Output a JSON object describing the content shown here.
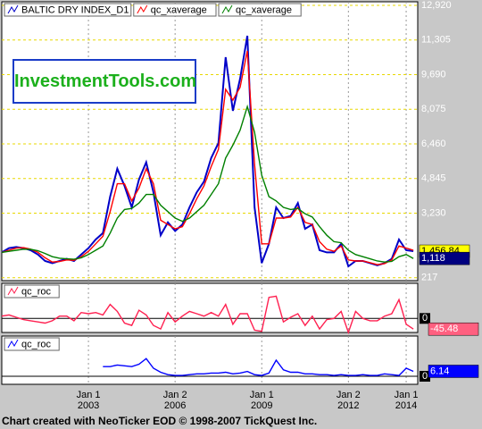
{
  "chart_data": [
    {
      "type": "line",
      "x": [
        2000,
        2000.25,
        2000.5,
        2000.75,
        2001,
        2001.25,
        2001.5,
        2001.75,
        2002,
        2002.25,
        2002.5,
        2002.75,
        2003,
        2003.25,
        2003.5,
        2003.75,
        2004,
        2004.25,
        2004.5,
        2004.75,
        2005,
        2005.25,
        2005.5,
        2005.75,
        2006,
        2006.25,
        2006.5,
        2006.75,
        2007,
        2007.25,
        2007.5,
        2007.75,
        2008,
        2008.25,
        2008.5,
        2008.75,
        2009,
        2009.25,
        2009.5,
        2009.75,
        2010,
        2010.25,
        2010.5,
        2010.75,
        2011,
        2011.25,
        2011.5,
        2011.75,
        2012,
        2012.25,
        2012.5,
        2012.75,
        2013,
        2013.25,
        2013.5,
        2013.75,
        2014,
        2014.25
      ],
      "xlim": [
        2000,
        2014.4
      ],
      "ylim": [
        83,
        13086
      ],
      "yticks": [
        217,
        {
          "value": 3230,
          "label": "3,230"
        },
        {
          "value": 4845,
          "label": "4,845"
        },
        {
          "value": 6460,
          "label": "6,460"
        },
        {
          "value": 8075,
          "label": "8,075"
        },
        {
          "value": 9690,
          "label": "9,690"
        },
        {
          "value": 11305,
          "label": "11,305"
        },
        {
          "value": 12920,
          "label": "12,920"
        }
      ],
      "grid": true,
      "series": [
        {
          "name": "BALTIC DRY INDEX_D1",
          "color": "#0000c8",
          "label_color": "#ffff00",
          "values": [
            1400,
            1600,
            1650,
            1600,
            1500,
            1300,
            1000,
            900,
            1000,
            1100,
            1000,
            1300,
            1600,
            2000,
            2300,
            4000,
            5300,
            4500,
            3500,
            4800,
            5600,
            4200,
            2200,
            2800,
            2400,
            2700,
            3500,
            4200,
            4700,
            5800,
            6500,
            10500,
            8000,
            9500,
            11500,
            3500,
            900,
            1800,
            3500,
            3000,
            3100,
            3700,
            2500,
            2700,
            1500,
            1400,
            1400,
            1800,
            750,
            1000,
            1000,
            900,
            800,
            900,
            1100,
            2000,
            1500,
            1456.84
          ],
          "value_labels": [
            null,
            null,
            null,
            null,
            null,
            null,
            null,
            null,
            null,
            null,
            null,
            null,
            null,
            null,
            null,
            null,
            null,
            null,
            null,
            null,
            null,
            null,
            null,
            null,
            null,
            null,
            null,
            null,
            null,
            null,
            null,
            null,
            null,
            null,
            null,
            null,
            null,
            null,
            null,
            null,
            null,
            null,
            null,
            null,
            null,
            null,
            null,
            null,
            null,
            null,
            null,
            null,
            null,
            null,
            null,
            null,
            null,
            "1,456.84"
          ]
        },
        {
          "name": "qc_xaverage",
          "color": "#ff0000",
          "label_color": "#ff0000",
          "values": [
            1400,
            1500,
            1600,
            1620,
            1550,
            1400,
            1150,
            950,
            980,
            1050,
            1030,
            1200,
            1450,
            1800,
            2150,
            3300,
            4600,
            4600,
            3800,
            4400,
            5300,
            4600,
            2900,
            2700,
            2500,
            2600,
            3200,
            3900,
            4500,
            5400,
            6200,
            9000,
            8500,
            9100,
            10800,
            5500,
            1800,
            1800,
            3000,
            3000,
            3050,
            3500,
            2800,
            2700,
            1900,
            1550,
            1450,
            1700,
            1050,
            1000,
            1000,
            920,
            830,
            880,
            1050,
            1700,
            1600,
            1500
          ]
        },
        {
          "name": "qc_xaverage",
          "color": "#008000",
          "label_color": "#000080",
          "values": [
            1400,
            1450,
            1500,
            1550,
            1540,
            1480,
            1350,
            1200,
            1130,
            1100,
            1080,
            1150,
            1300,
            1500,
            1700,
            2300,
            3000,
            3400,
            3450,
            3700,
            4100,
            4100,
            3600,
            3300,
            3000,
            2850,
            3000,
            3300,
            3600,
            4100,
            4600,
            5800,
            6400,
            7100,
            8200,
            7000,
            5000,
            4000,
            3800,
            3500,
            3400,
            3450,
            3200,
            3050,
            2600,
            2200,
            1900,
            1850,
            1500,
            1300,
            1200,
            1100,
            1000,
            950,
            980,
            1200,
            1300,
            1118
          ],
          "value_labels": [
            null,
            null,
            null,
            null,
            null,
            null,
            null,
            null,
            null,
            null,
            null,
            null,
            null,
            null,
            null,
            null,
            null,
            null,
            null,
            null,
            null,
            null,
            null,
            null,
            null,
            null,
            null,
            null,
            null,
            null,
            null,
            null,
            null,
            null,
            null,
            null,
            null,
            null,
            null,
            null,
            null,
            null,
            null,
            null,
            null,
            null,
            null,
            null,
            null,
            null,
            null,
            null,
            null,
            null,
            null,
            null,
            null,
            "1,118"
          ]
        }
      ]
    },
    {
      "type": "line",
      "x": [
        2000,
        2000.25,
        2000.5,
        2000.75,
        2001,
        2001.25,
        2001.5,
        2001.75,
        2002,
        2002.25,
        2002.5,
        2002.75,
        2003,
        2003.25,
        2003.5,
        2003.75,
        2004,
        2004.25,
        2004.5,
        2004.75,
        2005,
        2005.25,
        2005.5,
        2005.75,
        2006,
        2006.25,
        2006.5,
        2006.75,
        2007,
        2007.25,
        2007.5,
        2007.75,
        2008,
        2008.25,
        2008.5,
        2008.75,
        2009,
        2009.25,
        2009.5,
        2009.75,
        2010,
        2010.25,
        2010.5,
        2010.75,
        2011,
        2011.25,
        2011.5,
        2011.75,
        2012,
        2012.25,
        2012.5,
        2012.75,
        2013,
        2013.25,
        2013.5,
        2013.75,
        2014,
        2014.25
      ],
      "xlim": [
        2000,
        2014.4
      ],
      "ylim": [
        -60,
        150
      ],
      "yticks": [
        0
      ],
      "show_last_value": true,
      "series": [
        {
          "name": "qc_roc",
          "color": "#ff2050",
          "label_color": "#ff6080",
          "values": [
            10,
            15,
            5,
            -5,
            -10,
            -15,
            -20,
            -10,
            10,
            10,
            -10,
            25,
            20,
            25,
            15,
            60,
            30,
            -20,
            -30,
            35,
            15,
            -30,
            -45,
            25,
            -15,
            10,
            30,
            20,
            10,
            25,
            10,
            60,
            -25,
            20,
            20,
            -50,
            -55,
            90,
            95,
            -15,
            5,
            20,
            -30,
            10,
            -45,
            -5,
            0,
            30,
            -60,
            30,
            0,
            -10,
            -10,
            10,
            20,
            80,
            -25,
            -45.48
          ]
        }
      ]
    },
    {
      "type": "line",
      "x": [
        2000,
        2000.25,
        2000.5,
        2000.75,
        2001,
        2001.25,
        2001.5,
        2001.75,
        2002,
        2002.25,
        2002.5,
        2002.75,
        2003,
        2003.25,
        2003.5,
        2003.75,
        2004,
        2004.25,
        2004.5,
        2004.75,
        2005,
        2005.25,
        2005.5,
        2005.75,
        2006,
        2006.25,
        2006.5,
        2006.75,
        2007,
        2007.25,
        2007.5,
        2007.75,
        2008,
        2008.25,
        2008.5,
        2008.75,
        2009,
        2009.25,
        2009.5,
        2009.75,
        2010,
        2010.25,
        2010.5,
        2010.75,
        2011,
        2011.25,
        2011.5,
        2011.75,
        2012,
        2012.25,
        2012.5,
        2012.75,
        2013,
        2013.25,
        2013.5,
        2013.75,
        2014,
        2014.25
      ],
      "xlim": [
        2000,
        2014.4
      ],
      "ylim": [
        -10,
        50
      ],
      "yticks": [
        0
      ],
      "show_last_value": true,
      "xticks": [
        {
          "value": 2003,
          "label": "Jan 1 2003"
        },
        {
          "value": 2006,
          "label": "Jan 2 2006"
        },
        {
          "value": 2009,
          "label": "Jan 1 2009"
        },
        {
          "value": 2012,
          "label": "Jan 2 2012"
        },
        {
          "value": 2014,
          "label": "Jan 1 2014"
        }
      ],
      "series": [
        {
          "name": "qc_roc",
          "color": "#0000ff",
          "label_color": "#0000ff",
          "values": [
            null,
            null,
            null,
            null,
            null,
            null,
            null,
            null,
            null,
            null,
            null,
            null,
            null,
            null,
            12,
            12,
            14,
            13,
            12,
            15,
            22,
            10,
            5,
            2,
            1,
            1,
            2,
            3,
            3,
            4,
            4,
            5,
            3,
            4,
            6,
            2,
            1,
            4,
            20,
            8,
            5,
            5,
            3,
            3,
            2,
            2,
            1,
            2,
            1,
            1,
            2,
            1,
            1,
            3,
            2,
            1,
            10,
            6.14
          ]
        }
      ]
    }
  ],
  "watermark": "InvestmentTools.com",
  "footer": "Chart created with NeoTicker EOD © 1998-2007 TickQuest Inc."
}
